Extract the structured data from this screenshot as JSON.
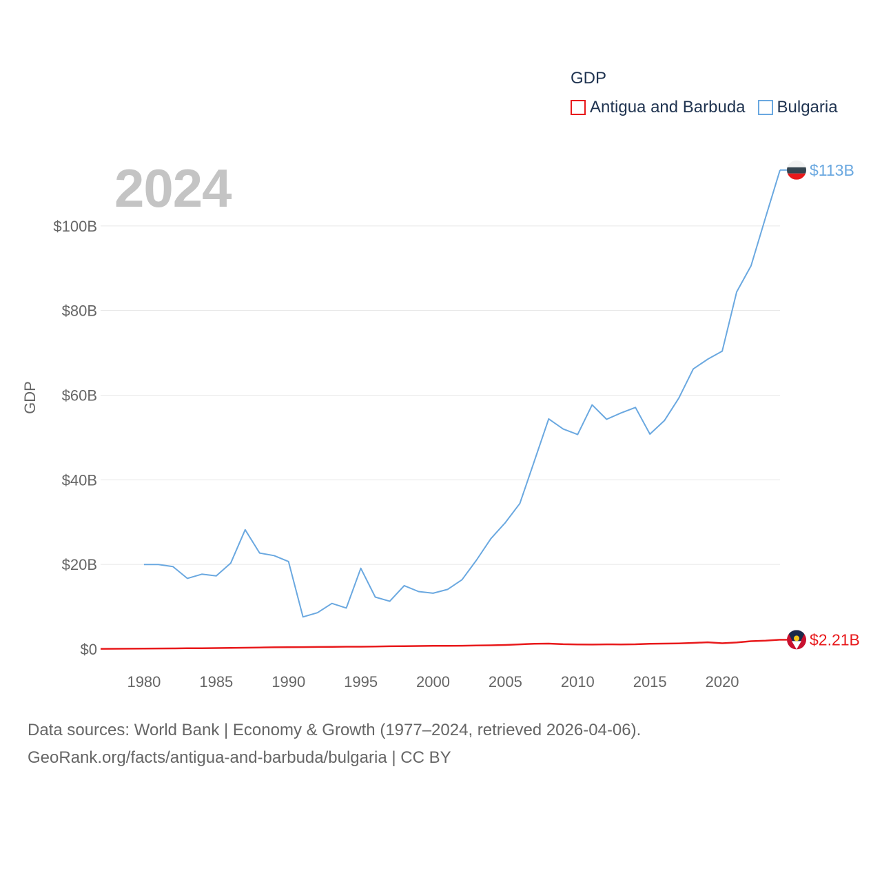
{
  "legend": {
    "title": "GDP",
    "items": [
      {
        "name": "Antigua and Barbuda",
        "color": "#e8191b"
      },
      {
        "name": "Bulgaria",
        "color": "#6aa8e0"
      }
    ]
  },
  "year_label": "2024",
  "footer": {
    "line1": "Data sources: World Bank | Economy & Growth (1977–2024, retrieved 2026-04-06).",
    "line2": "GeoRank.org/facts/antigua-and-barbuda/bulgaria | CC BY"
  },
  "chart_data": {
    "type": "line",
    "title": "GDP",
    "ylabel": "GDP",
    "xlabel": "",
    "xlim": [
      1977,
      2024
    ],
    "ylim": [
      0,
      113
    ],
    "x_ticks": [
      1980,
      1985,
      1990,
      1995,
      2000,
      2005,
      2010,
      2015,
      2020
    ],
    "y_ticks": [
      {
        "value": 0,
        "label": "$0"
      },
      {
        "value": 20,
        "label": "$20B"
      },
      {
        "value": 40,
        "label": "$40B"
      },
      {
        "value": 60,
        "label": "$60B"
      },
      {
        "value": 80,
        "label": "$80B"
      },
      {
        "value": 100,
        "label": "$100B"
      }
    ],
    "series": [
      {
        "name": "Antigua and Barbuda",
        "color": "#e8191b",
        "end_label": "$2.21B",
        "x": [
          1977,
          1978,
          1979,
          1980,
          1981,
          1982,
          1983,
          1984,
          1985,
          1986,
          1987,
          1988,
          1989,
          1990,
          1991,
          1992,
          1993,
          1994,
          1995,
          1996,
          1997,
          1998,
          1999,
          2000,
          2001,
          2002,
          2003,
          2004,
          2005,
          2006,
          2007,
          2008,
          2009,
          2010,
          2011,
          2012,
          2013,
          2014,
          2015,
          2016,
          2017,
          2018,
          2019,
          2020,
          2021,
          2022,
          2023,
          2024
        ],
        "values": [
          0.07,
          0.08,
          0.1,
          0.13,
          0.15,
          0.17,
          0.19,
          0.21,
          0.24,
          0.29,
          0.33,
          0.37,
          0.42,
          0.46,
          0.48,
          0.5,
          0.53,
          0.57,
          0.57,
          0.62,
          0.66,
          0.7,
          0.74,
          0.78,
          0.78,
          0.8,
          0.84,
          0.9,
          0.97,
          1.12,
          1.25,
          1.3,
          1.16,
          1.1,
          1.08,
          1.12,
          1.1,
          1.14,
          1.26,
          1.31,
          1.35,
          1.47,
          1.61,
          1.38,
          1.56,
          1.87,
          2.01,
          2.21
        ]
      },
      {
        "name": "Bulgaria",
        "color": "#6aa8e0",
        "end_label": "$113B",
        "x": [
          1980,
          1981,
          1982,
          1983,
          1984,
          1985,
          1986,
          1987,
          1988,
          1989,
          1990,
          1991,
          1992,
          1993,
          1994,
          1995,
          1996,
          1997,
          1998,
          1999,
          2000,
          2001,
          2002,
          2003,
          2004,
          2005,
          2006,
          2007,
          2008,
          2009,
          2010,
          2011,
          2012,
          2013,
          2014,
          2015,
          2016,
          2017,
          2018,
          2019,
          2020,
          2021,
          2022,
          2023,
          2024
        ],
        "values": [
          20.0,
          20.0,
          19.5,
          16.7,
          17.7,
          17.3,
          20.3,
          28.2,
          22.7,
          22.1,
          20.7,
          7.6,
          8.6,
          10.8,
          9.7,
          19.1,
          12.3,
          11.3,
          15.0,
          13.6,
          13.2,
          14.1,
          16.4,
          21.0,
          26.1,
          29.9,
          34.4,
          44.4,
          54.4,
          52.0,
          50.7,
          57.7,
          54.3,
          55.8,
          57.1,
          50.8,
          54.0,
          59.3,
          66.2,
          68.5,
          70.4,
          84.4,
          90.6,
          102.0,
          113.2
        ]
      }
    ]
  }
}
